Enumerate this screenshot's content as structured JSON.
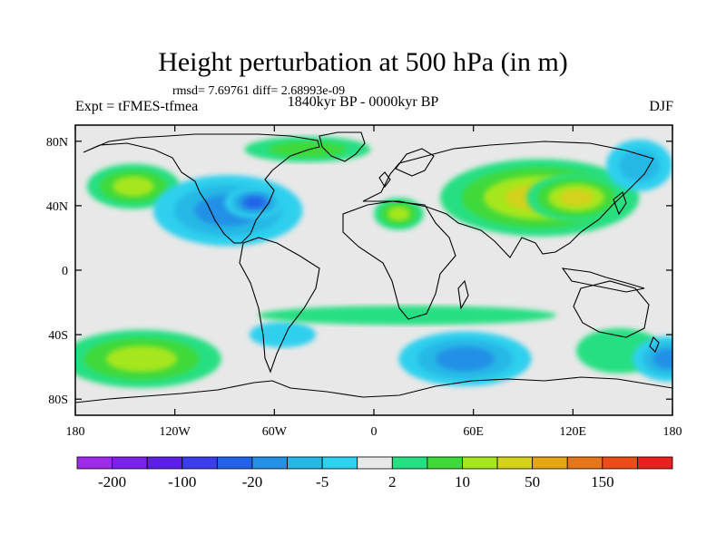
{
  "chart_data": {
    "type": "heatmap",
    "title": "Height perturbation at 500 hPa (in m)",
    "stats_text": "rmsd= 7.69761 diff= 2.68993e-09",
    "left_label": "Expt = tFMES-tfmea",
    "center_label": "1840kyr BP - 0000kyr BP",
    "right_label": "DJF",
    "x_ticks": [
      {
        "value": -180,
        "label": "180"
      },
      {
        "value": -120,
        "label": "120W"
      },
      {
        "value": -60,
        "label": "60W"
      },
      {
        "value": 0,
        "label": "0"
      },
      {
        "value": 60,
        "label": "60E"
      },
      {
        "value": 120,
        "label": "120E"
      },
      {
        "value": 180,
        "label": "180"
      }
    ],
    "y_ticks": [
      {
        "value": 80,
        "label": "80N"
      },
      {
        "value": 40,
        "label": "40N"
      },
      {
        "value": 0,
        "label": "0"
      },
      {
        "value": -40,
        "label": "40S"
      },
      {
        "value": -80,
        "label": "80S"
      }
    ],
    "xlim": [
      -180,
      180
    ],
    "ylim": [
      -90,
      90
    ],
    "colorbar": {
      "colors": [
        "#9f2ae8",
        "#7a22e8",
        "#5b1fe6",
        "#3b3ee8",
        "#2162e8",
        "#2490e6",
        "#25b8e5",
        "#2dd0ee",
        "#e8e8e8",
        "#27df82",
        "#3fd93a",
        "#a6e61f",
        "#d4d21a",
        "#e6a417",
        "#e7761a",
        "#ea4c1a",
        "#ec1f1f"
      ],
      "labels": [
        {
          "boundary": 1,
          "text": "-200"
        },
        {
          "boundary": 3,
          "text": "-100"
        },
        {
          "boundary": 5,
          "text": "-20"
        },
        {
          "boundary": 7,
          "text": "-5"
        },
        {
          "boundary": 9,
          "text": "2"
        },
        {
          "boundary": 11,
          "text": "10"
        },
        {
          "boundary": 13,
          "text": "50"
        },
        {
          "boundary": 15,
          "text": "150"
        }
      ]
    },
    "anomaly_regions": [
      {
        "lon": -145,
        "lat": 52,
        "rlon": 28,
        "rlat": 14,
        "value": 10,
        "desc": "Alaska / NE Pacific positive"
      },
      {
        "lon": -88,
        "lat": 37,
        "rlon": 45,
        "rlat": 22,
        "value": -15,
        "desc": "North America negative"
      },
      {
        "lon": -72,
        "lat": 42,
        "rlon": 18,
        "rlat": 10,
        "value": -25,
        "desc": "NW Atlantic negative core"
      },
      {
        "lon": -40,
        "lat": 75,
        "rlon": 38,
        "rlat": 8,
        "value": 5,
        "desc": "Greenland positive"
      },
      {
        "lon": 15,
        "lat": 35,
        "rlon": 15,
        "rlat": 10,
        "value": 10,
        "desc": "Mediterranean positive"
      },
      {
        "lon": 100,
        "lat": 45,
        "rlon": 60,
        "rlat": 24,
        "value": 20,
        "desc": "Asia positive"
      },
      {
        "lon": 122,
        "lat": 45,
        "rlon": 30,
        "rlat": 15,
        "value": 45,
        "desc": "Asia positive core"
      },
      {
        "lon": -140,
        "lat": -55,
        "rlon": 48,
        "rlat": 18,
        "value": 18,
        "desc": "South Pacific positive"
      },
      {
        "lon": 55,
        "lat": -55,
        "rlon": 40,
        "rlat": 17,
        "value": -12,
        "desc": "South Indian Ocean negative"
      },
      {
        "lon": 148,
        "lat": -50,
        "rlon": 26,
        "rlat": 14,
        "value": 4,
        "desc": "Tasman positive"
      },
      {
        "lon": 178,
        "lat": -55,
        "rlon": 22,
        "rlat": 14,
        "value": -10,
        "desc": "Date-line negative"
      },
      {
        "lon": -55,
        "lat": -40,
        "rlon": 20,
        "rlat": 8,
        "value": -4,
        "desc": "South Atlantic negative"
      },
      {
        "lon": 20,
        "lat": -28,
        "rlon": 90,
        "rlat": 6,
        "value": 4,
        "desc": "Subtropical positive band"
      },
      {
        "lon": 160,
        "lat": 65,
        "rlon": 20,
        "rlat": 16,
        "value": -6,
        "desc": "NE Siberia negative"
      }
    ]
  }
}
